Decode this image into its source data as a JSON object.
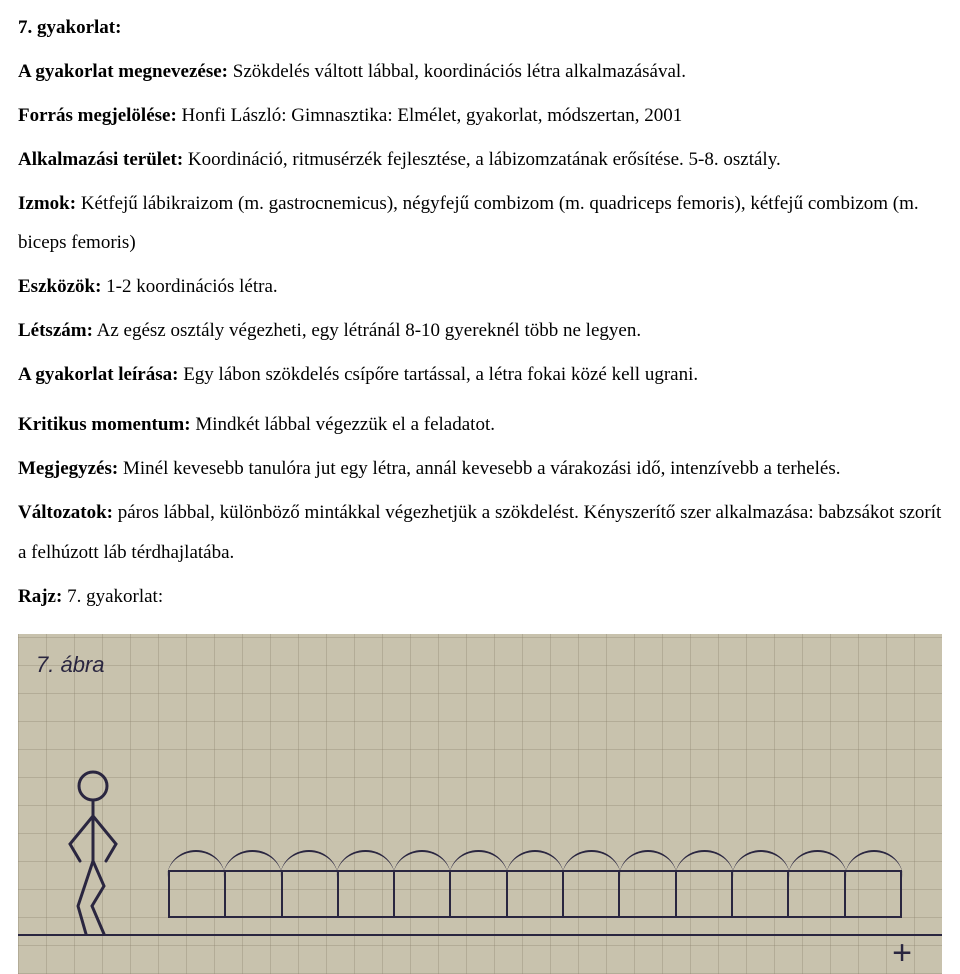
{
  "title_line": {
    "label": "7. gyakorlat:"
  },
  "name_line": {
    "label": "A gyakorlat megnevezése:",
    "text": " Szökdelés váltott lábbal, koordinációs létra alkalmazásával."
  },
  "source_line": {
    "label": "Forrás megjelölése:",
    "text": " Honfi László: Gimnasztika: Elmélet, gyakorlat, módszertan, 2001"
  },
  "area_line": {
    "label": "Alkalmazási terület:",
    "text": " Koordináció, ritmusérzék fejlesztése, a lábizomzatának erősítése. 5-8. osztály."
  },
  "muscles_line": {
    "label": "Izmok:",
    "text": " Kétfejű lábikraizom (m. gastrocnemicus), négyfejű combizom (m. quadriceps femoris), kétfejű combizom (m. biceps femoris)"
  },
  "tools_line": {
    "label": "Eszközök:",
    "text": " 1-2 koordinációs létra."
  },
  "count_line": {
    "label": "Létszám:",
    "text": " Az egész osztály végezheti, egy létránál 8-10 gyereknél több ne legyen."
  },
  "desc_line": {
    "label": "A gyakorlat leírása:",
    "text": " Egy lábon szökdelés csípőre tartással, a létra fokai közé kell ugrani."
  },
  "crit_line": {
    "label": "Kritikus momentum:",
    "text": " Mindkét lábbal végezzük el a feladatot."
  },
  "note_line": {
    "label": "Megjegyzés:",
    "text": " Minél kevesebb tanulóra jut egy létra, annál kevesebb a várakozási idő, intenzívebb a terhelés."
  },
  "var_line": {
    "label": "Változatok:",
    "text": " páros lábbal, különböző mintákkal végezhetjük a szökdelést. Kényszerítő szer alkalmazása: babzsákot szorít a felhúzott láb térdhajlatába."
  },
  "draw_line": {
    "label": "Rajz:",
    "text": " 7. gyakorlat:"
  },
  "figure": {
    "caption": "7. ábra",
    "ladder_rungs": 14,
    "arc_count": 13,
    "stroke_color": "#2a2640",
    "grid_color": "#8d856f",
    "paper_color": "#c8c2ad",
    "crossmark": "+"
  }
}
